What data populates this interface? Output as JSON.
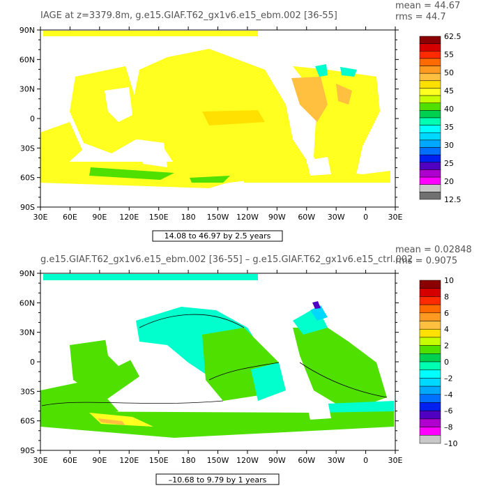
{
  "panels": [
    {
      "title": "IAGE at z=3379.8m, g.e15.GIAF.T62_gx1v6.e15_ebm.002 [36-55]",
      "mean_label": "mean = 44.67",
      "rms_label": "rms = 44.7",
      "contour_info": "14.08 to 46.97 by 2.5 years",
      "colorbar_labels": [
        "62.5",
        "55",
        "50",
        "45",
        "40",
        "35",
        "30",
        "25",
        "20",
        "12.5"
      ],
      "colorbar_colors": [
        "#8b0000",
        "#d40000",
        "#ff2a00",
        "#ff6a00",
        "#ff9a20",
        "#ffc040",
        "#ffe000",
        "#ffff20",
        "#c8ff00",
        "#50e000",
        "#00d050",
        "#00ffb0",
        "#00ffff",
        "#00d8ff",
        "#00a8ff",
        "#0070ff",
        "#0020f0",
        "#5000c0",
        "#b000d0",
        "#ff00ff",
        "#c8c8c8",
        "#707070"
      ]
    },
    {
      "title": "g.e15.GIAF.T62_gx1v6.e15_ebm.002 [36-55] – g.e15.GIAF.T62_gx1v6.e15_ctrl.002",
      "mean_label": "mean = 0.02848",
      "rms_label": "rms = 0.9075",
      "contour_info": "–10.68 to 9.79 by 1 years",
      "colorbar_labels": [
        "10",
        "8",
        "6",
        "4",
        "2",
        "0",
        "–2",
        "–4",
        "–6",
        "–8",
        "–10"
      ],
      "colorbar_colors": [
        "#8b0000",
        "#d40000",
        "#ff2a00",
        "#ff6a00",
        "#ff9a20",
        "#ffc040",
        "#ffe000",
        "#c8ff00",
        "#50e000",
        "#00d050",
        "#00ffb0",
        "#00ffff",
        "#00d8ff",
        "#00a8ff",
        "#0070ff",
        "#0020f0",
        "#5000c0",
        "#b000d0",
        "#ff00ff",
        "#c8c8c8"
      ]
    }
  ],
  "axes": {
    "lat_labels": [
      "90N",
      "60N",
      "30N",
      "0",
      "30S",
      "60S",
      "90S"
    ],
    "lon_labels": [
      "30E",
      "60E",
      "90E",
      "120E",
      "150E",
      "180",
      "150W",
      "120W",
      "90W",
      "60W",
      "30W",
      "0",
      "30E"
    ]
  },
  "colors": {
    "panel1_dominant": "#ffff20",
    "panel1_dark": "#ffe000",
    "panel1_orange": "#ffc040",
    "panel2_dominant": "#50e000",
    "panel2_cyan": "#00ffcc"
  }
}
